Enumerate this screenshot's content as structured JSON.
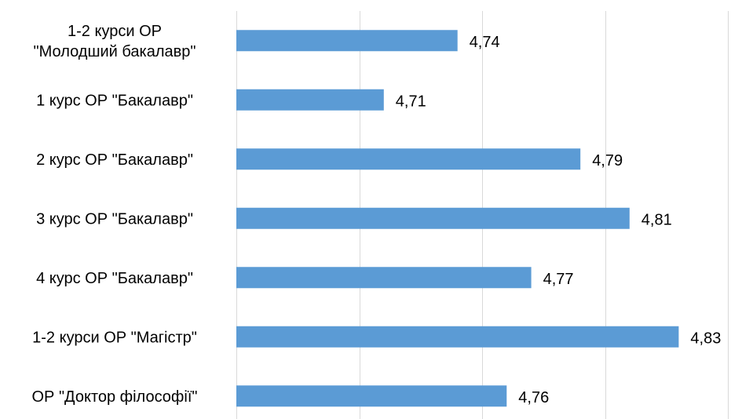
{
  "chart_data": {
    "type": "bar",
    "orientation": "horizontal",
    "title": "",
    "xlabel": "",
    "ylabel": "",
    "categories": [
      [
        "1-2 курси ОР",
        "\"Молодший бакалавр\""
      ],
      [
        "1 курс ОР \"Бакалавр\""
      ],
      [
        "2  курс ОР \"Бакалавр\""
      ],
      [
        "3  курс ОР \"Бакалавр\""
      ],
      [
        "4  курс ОР \"Бакалавр\""
      ],
      [
        "1-2 курси ОР \"Магістр\""
      ],
      [
        "ОР \"Доктор філософії\""
      ]
    ],
    "values": [
      4.74,
      4.71,
      4.79,
      4.81,
      4.77,
      4.83,
      4.76
    ],
    "value_labels": [
      "4,74",
      "4,71",
      "4,79",
      "4,81",
      "4,77",
      "4,83",
      "4,76"
    ],
    "xlim": [
      4.65,
      4.85
    ],
    "grid_step": 0.05,
    "grid": true,
    "legend": "none",
    "bar_color": "#5b9bd5"
  }
}
